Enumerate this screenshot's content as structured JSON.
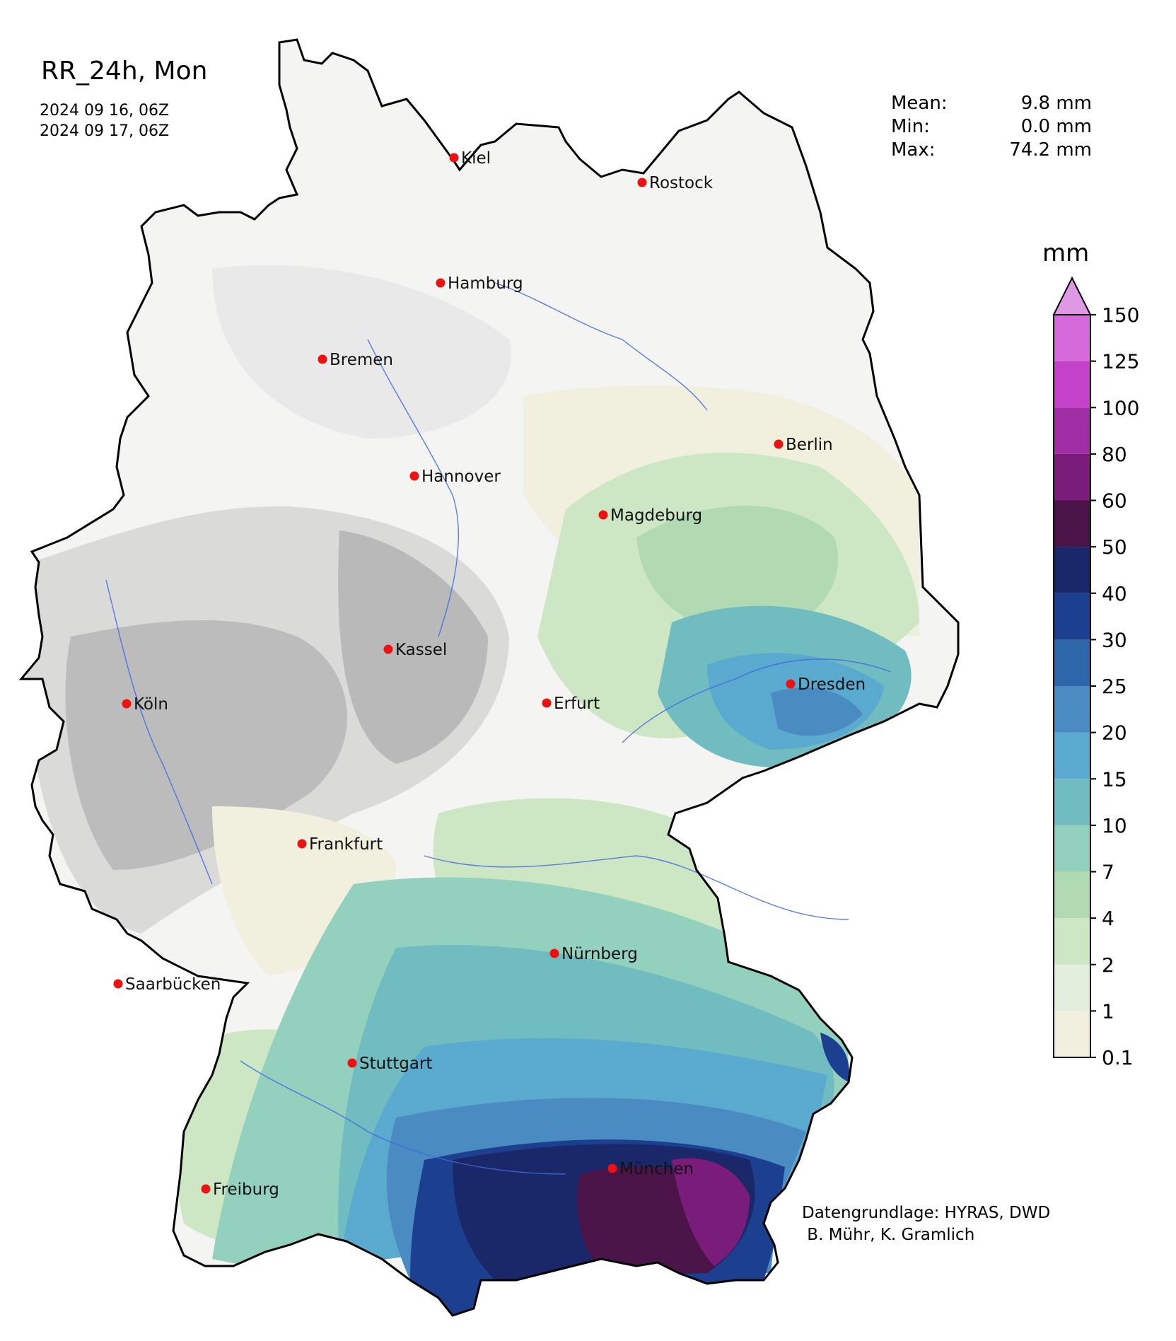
{
  "title": "RR_24h, Mon",
  "dates": [
    "2024 09 16, 06Z",
    "2024 09 17, 06Z"
  ],
  "stats": [
    {
      "label": "Mean:",
      "value": "9.8 mm"
    },
    {
      "label": "Min:",
      "value": "0.0 mm"
    },
    {
      "label": "Max:",
      "value": "74.2 mm"
    }
  ],
  "credit": [
    "Datengrundlage: HYRAS, DWD",
    " B. Mühr, K. Gramlich"
  ],
  "legend": {
    "unit": "mm",
    "levels": [
      "0.1",
      "1",
      "2",
      "4",
      "7",
      "10",
      "15",
      "20",
      "25",
      "30",
      "40",
      "50",
      "60",
      "80",
      "100",
      "125",
      "150"
    ],
    "colors": [
      "#f1f0df",
      "#e2efdc",
      "#cde7c5",
      "#b1dab2",
      "#93d1be",
      "#70bcc0",
      "#5aaacf",
      "#4a8bc1",
      "#2e67a9",
      "#1c3f8f",
      "#1a2869",
      "#4a1448",
      "#7a1c7a",
      "#a12da5",
      "#c342c9",
      "#d66adb"
    ],
    "extend_color": "#e198e4"
  },
  "cities": [
    {
      "name": "Kiel"
    },
    {
      "name": "Rostock"
    },
    {
      "name": "Hamburg"
    },
    {
      "name": "Bremen"
    },
    {
      "name": "Berlin"
    },
    {
      "name": "Hannover"
    },
    {
      "name": "Magdeburg"
    },
    {
      "name": "Kassel"
    },
    {
      "name": "Dresden"
    },
    {
      "name": "Köln"
    },
    {
      "name": "Erfurt"
    },
    {
      "name": "Frankfurt"
    },
    {
      "name": "Nürnberg"
    },
    {
      "name": "Saarbücken"
    },
    {
      "name": "Stuttgart"
    },
    {
      "name": "München"
    },
    {
      "name": "Freiburg"
    }
  ]
}
